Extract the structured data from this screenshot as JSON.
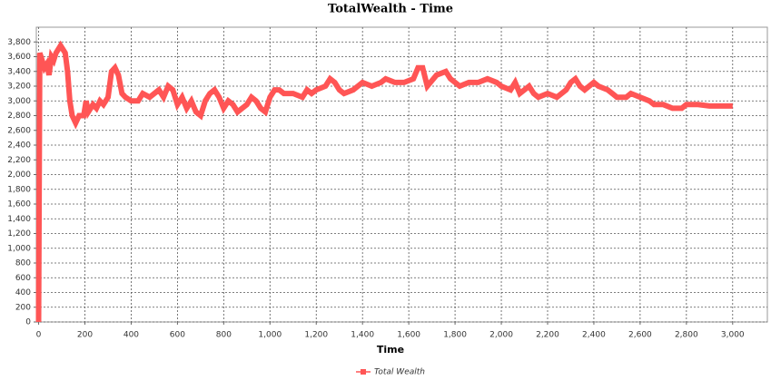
{
  "chart_data": {
    "type": "line",
    "title": "TotalWealth - Time",
    "x_label": "Time",
    "x": [
      0,
      5,
      15,
      25,
      35,
      45,
      55,
      65,
      75,
      85,
      95,
      105,
      115,
      125,
      135,
      145,
      160,
      175,
      195,
      205,
      215,
      235,
      250,
      265,
      280,
      300,
      315,
      330,
      345,
      360,
      375,
      400,
      430,
      450,
      480,
      500,
      520,
      540,
      560,
      580,
      600,
      620,
      640,
      660,
      680,
      700,
      720,
      740,
      760,
      780,
      800,
      820,
      840,
      860,
      880,
      900,
      920,
      940,
      960,
      980,
      1000,
      1020,
      1040,
      1060,
      1100,
      1140,
      1160,
      1180,
      1200,
      1240,
      1260,
      1280,
      1300,
      1320,
      1360,
      1400,
      1440,
      1480,
      1500,
      1540,
      1580,
      1620,
      1640,
      1660,
      1680,
      1720,
      1760,
      1780,
      1820,
      1860,
      1900,
      1940,
      1980,
      2000,
      2040,
      2060,
      2080,
      2120,
      2140,
      2160,
      2200,
      2240,
      2280,
      2300,
      2320,
      2340,
      2360,
      2380,
      2400,
      2420,
      2460,
      2480,
      2500,
      2540,
      2560,
      2600,
      2640,
      2660,
      2700,
      2740,
      2780,
      2800,
      2850,
      2900,
      3000
    ],
    "series": [
      {
        "name": "Total Wealth",
        "color": "#ff5555",
        "values": [
          0,
          3650,
          3550,
          3450,
          3500,
          3350,
          3600,
          3550,
          3650,
          3700,
          3750,
          3700,
          3650,
          3400,
          3000,
          2800,
          2700,
          2800,
          2800,
          3000,
          2850,
          2950,
          2900,
          3000,
          2950,
          3050,
          3400,
          3450,
          3350,
          3100,
          3050,
          3000,
          3000,
          3100,
          3050,
          3100,
          3150,
          3050,
          3200,
          3150,
          2950,
          3050,
          2900,
          3000,
          2850,
          2800,
          3000,
          3100,
          3150,
          3050,
          2900,
          3000,
          2950,
          2850,
          2900,
          2950,
          3050,
          3000,
          2900,
          2850,
          3050,
          3150,
          3150,
          3100,
          3100,
          3050,
          3150,
          3100,
          3150,
          3200,
          3300,
          3250,
          3150,
          3100,
          3150,
          3250,
          3200,
          3250,
          3300,
          3250,
          3250,
          3300,
          3450,
          3450,
          3200,
          3350,
          3400,
          3300,
          3200,
          3250,
          3250,
          3300,
          3250,
          3200,
          3150,
          3250,
          3100,
          3200,
          3100,
          3050,
          3100,
          3050,
          3150,
          3250,
          3300,
          3200,
          3150,
          3200,
          3250,
          3200,
          3150,
          3100,
          3050,
          3050,
          3100,
          3050,
          3000,
          2950,
          2950,
          2900,
          2900,
          2950,
          2950,
          2930,
          2930
        ]
      }
    ],
    "xlim": [
      -10,
      3150
    ],
    "xticks": [
      0,
      200,
      400,
      600,
      800,
      {
        "value": 1000,
        "label": "1,000"
      },
      {
        "value": 1200,
        "label": "1,200"
      },
      {
        "value": 1400,
        "label": "1,400"
      },
      {
        "value": 1600,
        "label": "1,600"
      },
      {
        "value": 1800,
        "label": "1,800"
      },
      {
        "value": 2000,
        "label": "2,000"
      },
      {
        "value": 2200,
        "label": "2,200"
      },
      {
        "value": 2400,
        "label": "2,400"
      },
      {
        "value": 2600,
        "label": "2,600"
      },
      {
        "value": 2800,
        "label": "2,800"
      },
      {
        "value": 3000,
        "label": "3,000"
      }
    ],
    "ylim": [
      0,
      4000
    ],
    "yticks": [
      0,
      200,
      400,
      600,
      800,
      {
        "value": 1000,
        "label": "1,000"
      },
      {
        "value": 1200,
        "label": "1,200"
      },
      {
        "value": 1400,
        "label": "1,400"
      },
      {
        "value": 1600,
        "label": "1,600"
      },
      {
        "value": 1800,
        "label": "1,800"
      },
      {
        "value": 2000,
        "label": "2,000"
      },
      {
        "value": 2200,
        "label": "2,200"
      },
      {
        "value": 2400,
        "label": "2,400"
      },
      {
        "value": 2600,
        "label": "2,600"
      },
      {
        "value": 2800,
        "label": "2,800"
      },
      {
        "value": 3000,
        "label": "3,000"
      },
      {
        "value": 3200,
        "label": "3,200"
      },
      {
        "value": 3400,
        "label": "3,400"
      },
      {
        "value": 3600,
        "label": "3,600"
      },
      {
        "value": 3800,
        "label": "3,800"
      }
    ],
    "grid": true
  }
}
